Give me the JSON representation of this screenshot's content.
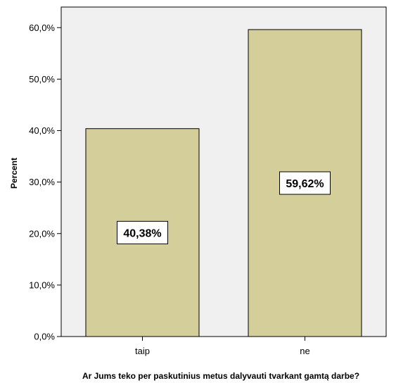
{
  "chart_data": {
    "type": "bar",
    "categories": [
      "taip",
      "ne"
    ],
    "values": [
      40.38,
      59.62
    ],
    "data_labels": [
      "40,38%",
      "59,62%"
    ],
    "xlabel": "Ar Jums teko per paskutinius metus dalyvauti tvarkant gamtą darbe?",
    "ylabel": "Percent",
    "ylim": [
      0,
      64
    ],
    "yticks": [
      0,
      10,
      20,
      30,
      40,
      50,
      60
    ],
    "ytick_labels": [
      "0,0%",
      "10,0%",
      "20,0%",
      "30,0%",
      "40,0%",
      "50,0%",
      "60,0%"
    ],
    "grid": false,
    "colors": {
      "bar_fill": "#d3ce9a",
      "plot_background": "#f0f0f0",
      "frame": "#000000"
    }
  }
}
